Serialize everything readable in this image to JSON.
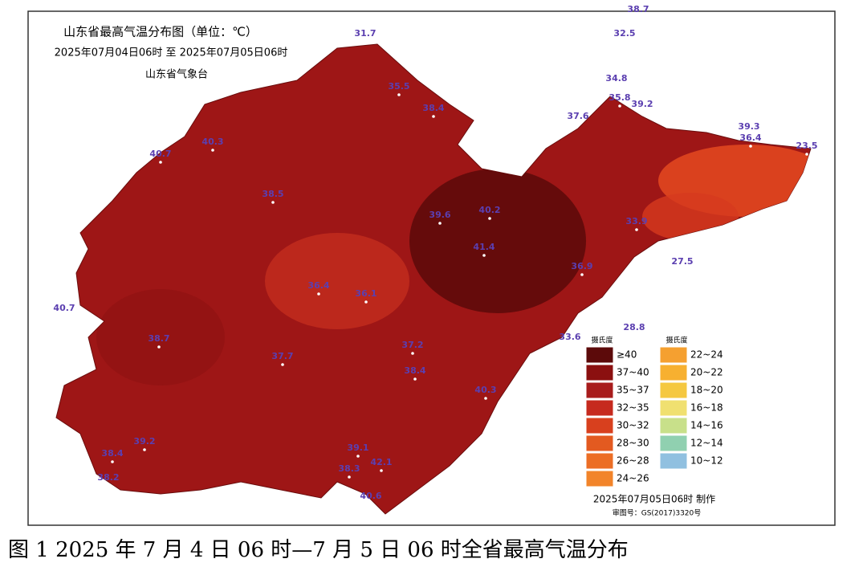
{
  "title": "山东省最高气温分布图（单位：℃）",
  "period": "2025年07月04日06时  至  2025年07月05日06时",
  "issuer": "山东省气象台",
  "legend": {
    "titles": [
      "摄氏度",
      "摄氏度"
    ],
    "items": [
      {
        "label": "≥40",
        "color": "#5c0a0a"
      },
      {
        "label": "37~40",
        "color": "#8b1010"
      },
      {
        "label": "35~37",
        "color": "#a81c1c"
      },
      {
        "label": "32~35",
        "color": "#c62a1e"
      },
      {
        "label": "30~32",
        "color": "#d8401e"
      },
      {
        "label": "28~30",
        "color": "#e35a20"
      },
      {
        "label": "26~28",
        "color": "#ec6e25"
      },
      {
        "label": "24~26",
        "color": "#f2842a"
      },
      {
        "label": "22~24",
        "color": "#f5a030"
      },
      {
        "label": "20~22",
        "color": "#f7b030"
      },
      {
        "label": "18~20",
        "color": "#f5c840"
      },
      {
        "label": "16~18",
        "color": "#f0e070"
      },
      {
        "label": "14~16",
        "color": "#c8e08a"
      },
      {
        "label": "12~14",
        "color": "#90d0b0"
      },
      {
        "label": "10~12",
        "color": "#90c0e0"
      }
    ]
  },
  "stations": [
    31.7,
    38.7,
    32.5,
    34.8,
    35.8,
    39.2,
    37.6,
    39.3,
    36.4,
    23.5,
    35.5,
    38.4,
    40.7,
    40.3,
    38.5,
    39.6,
    40.2,
    41.4,
    36.9,
    33.9,
    27.5,
    28.8,
    33.6,
    38.7,
    36.1,
    36.4,
    37.7,
    38.3,
    37.2,
    38.4,
    40.7,
    39.1,
    40.3,
    38.2,
    39.2,
    38.4,
    42.1,
    40.6
  ],
  "footer": "2025年07月05日06时 制作",
  "review": "审图号：GS(2017)3320号",
  "caption": "图 1 2025 年 7 月 4 日 06 时—7 月 5 日 06 时全省最高气温分布"
}
